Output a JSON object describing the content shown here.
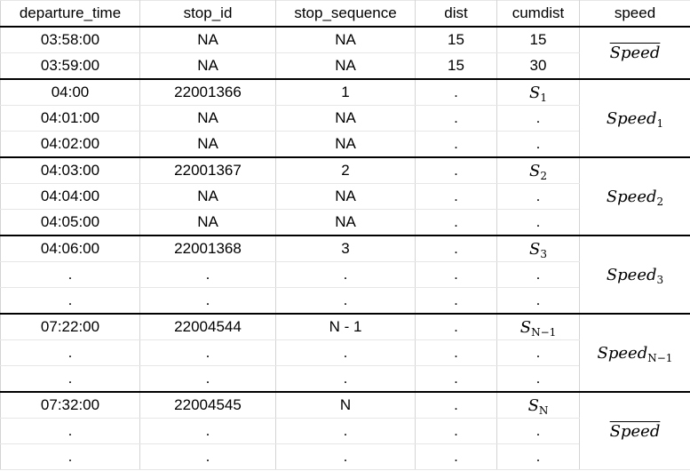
{
  "columns": [
    "departure_time",
    "stop_id",
    "stop_sequence",
    "dist",
    "cumdist",
    "speed"
  ],
  "groups": [
    {
      "speed": {
        "base": "Speed",
        "sub": "",
        "overline": true
      },
      "rows": [
        {
          "departure_time": "03:58:00",
          "stop_id": "NA",
          "stop_sequence": "NA",
          "dist": "15",
          "cumdist": {
            "text": "15"
          }
        },
        {
          "departure_time": "03:59:00",
          "stop_id": "NA",
          "stop_sequence": "NA",
          "dist": "15",
          "cumdist": {
            "text": "30"
          }
        }
      ]
    },
    {
      "speed": {
        "base": "Speed",
        "sub": "1",
        "overline": false
      },
      "rows": [
        {
          "departure_time": "04:00",
          "stop_id": "22001366",
          "stop_sequence": "1",
          "dist": ".",
          "cumdist": {
            "base": "S",
            "sub": "1"
          }
        },
        {
          "departure_time": "04:01:00",
          "stop_id": "NA",
          "stop_sequence": "NA",
          "dist": ".",
          "cumdist": {
            "text": "."
          }
        },
        {
          "departure_time": "04:02:00",
          "stop_id": "NA",
          "stop_sequence": "NA",
          "dist": ".",
          "cumdist": {
            "text": "."
          }
        }
      ]
    },
    {
      "speed": {
        "base": "Speed",
        "sub": "2",
        "overline": false
      },
      "rows": [
        {
          "departure_time": "04:03:00",
          "stop_id": "22001367",
          "stop_sequence": "2",
          "dist": ".",
          "cumdist": {
            "base": "S",
            "sub": "2"
          }
        },
        {
          "departure_time": "04:04:00",
          "stop_id": "NA",
          "stop_sequence": "NA",
          "dist": ".",
          "cumdist": {
            "text": "."
          }
        },
        {
          "departure_time": "04:05:00",
          "stop_id": "NA",
          "stop_sequence": "NA",
          "dist": ".",
          "cumdist": {
            "text": "."
          }
        }
      ]
    },
    {
      "speed": {
        "base": "Speed",
        "sub": "3",
        "overline": false
      },
      "rows": [
        {
          "departure_time": "04:06:00",
          "stop_id": "22001368",
          "stop_sequence": "3",
          "dist": ".",
          "cumdist": {
            "base": "S",
            "sub": "3"
          }
        },
        {
          "departure_time": ".",
          "stop_id": ".",
          "stop_sequence": ".",
          "dist": ".",
          "cumdist": {
            "text": "."
          }
        },
        {
          "departure_time": ".",
          "stop_id": ".",
          "stop_sequence": ".",
          "dist": ".",
          "cumdist": {
            "text": "."
          }
        }
      ]
    },
    {
      "speed": {
        "base": "Speed",
        "sub": "N−1",
        "overline": false
      },
      "rows": [
        {
          "departure_time": "07:22:00",
          "stop_id": "22004544",
          "stop_sequence": "N - 1",
          "dist": ".",
          "cumdist": {
            "base": "S",
            "sub": "N−1"
          }
        },
        {
          "departure_time": ".",
          "stop_id": ".",
          "stop_sequence": ".",
          "dist": ".",
          "cumdist": {
            "text": "."
          }
        },
        {
          "departure_time": ".",
          "stop_id": ".",
          "stop_sequence": ".",
          "dist": ".",
          "cumdist": {
            "text": "."
          }
        }
      ]
    },
    {
      "speed": {
        "base": "Speed",
        "sub": "",
        "overline": true
      },
      "rows": [
        {
          "departure_time": "07:32:00",
          "stop_id": "22004545",
          "stop_sequence": "N",
          "dist": ".",
          "cumdist": {
            "base": "S",
            "sub": "N"
          }
        },
        {
          "departure_time": ".",
          "stop_id": ".",
          "stop_sequence": ".",
          "dist": ".",
          "cumdist": {
            "text": "."
          }
        },
        {
          "departure_time": ".",
          "stop_id": ".",
          "stop_sequence": ".",
          "dist": ".",
          "cumdist": {
            "text": "."
          }
        }
      ]
    }
  ]
}
